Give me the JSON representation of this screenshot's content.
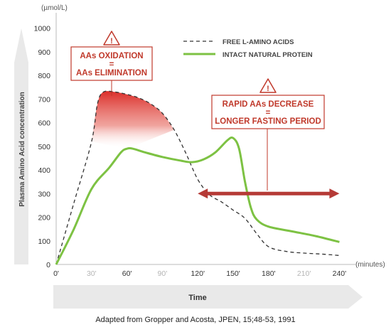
{
  "chart_data": {
    "type": "line",
    "y_unit_label": "(µmol/L)",
    "x_unit_label": "(minutes)",
    "ylabel": "Plasma Amino Acid concentration",
    "xlabel": "Time",
    "xlim": [
      0,
      245
    ],
    "ylim": [
      0,
      1000
    ],
    "x_ticks": [
      0,
      30,
      60,
      90,
      120,
      150,
      180,
      210,
      240
    ],
    "x_tick_labels": [
      "0'",
      "30'",
      "60'",
      "90'",
      "120'",
      "150'",
      "180'",
      "210'",
      "240'"
    ],
    "y_ticks": [
      0,
      100,
      200,
      300,
      400,
      500,
      600,
      700,
      800,
      900,
      1000
    ],
    "y_tick_labels": [
      "0",
      "100",
      "200",
      "300",
      "400",
      "500",
      "600",
      "700",
      "800",
      "900",
      "1000"
    ],
    "legend_position": "top-right",
    "series": [
      {
        "name": "FREE L-AMINO ACIDS",
        "style": "dashed",
        "color": "#333333",
        "x": [
          0,
          15,
          30,
          35,
          40,
          50,
          60,
          70,
          80,
          90,
          100,
          110,
          120,
          130,
          140,
          150,
          160,
          170,
          180,
          195,
          210,
          225,
          240
        ],
        "y": [
          0,
          260,
          520,
          680,
          730,
          730,
          720,
          705,
          680,
          640,
          570,
          470,
          360,
          295,
          265,
          230,
          195,
          130,
          75,
          55,
          48,
          44,
          38
        ]
      },
      {
        "name": "INTACT NATURAL PROTEIN",
        "style": "solid",
        "color": "#7dc243",
        "x": [
          0,
          15,
          30,
          45,
          55,
          60,
          65,
          75,
          90,
          105,
          115,
          125,
          135,
          145,
          150,
          155,
          160,
          165,
          170,
          180,
          200,
          220,
          240
        ],
        "y": [
          0,
          150,
          320,
          410,
          475,
          490,
          490,
          475,
          455,
          440,
          433,
          445,
          475,
          525,
          535,
          490,
          350,
          240,
          190,
          160,
          140,
          120,
          95
        ]
      }
    ],
    "annotations": {
      "oxidation": {
        "line1": "AAs OXIDATION",
        "line2": "=",
        "line3": "AAs ELIMINATION"
      },
      "decrease": {
        "line1": "RAPID AAs DECREASE",
        "line2": "=",
        "line3": "LONGER FASTING PERIOD"
      },
      "arrow_range": [
        120,
        240
      ],
      "arrow_level": 300
    }
  },
  "caption": "Adapted from Gropper and Acosta, JPEN, 15;48-53, 1991",
  "colors": {
    "accent_red": "#c0392b",
    "arrow_red": "#b53a36",
    "green": "#7dc243",
    "grey_band": "#e9e9e9",
    "axis_text": "#9a9a9a"
  }
}
